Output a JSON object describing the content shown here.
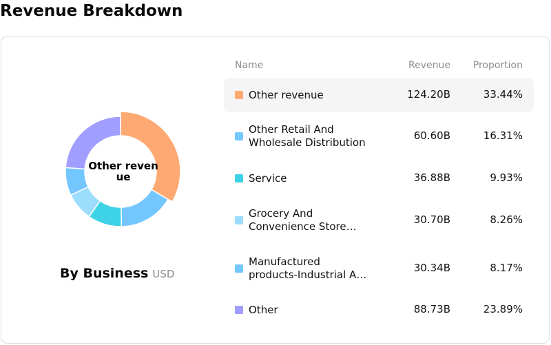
{
  "page_title": "Revenue Breakdown",
  "chart": {
    "center_label": "Other revenue",
    "section_title": "By Business",
    "unit": "USD"
  },
  "table": {
    "headers": {
      "name": "Name",
      "revenue": "Revenue",
      "proportion": "Proportion"
    },
    "rows": [
      {
        "name_lines": [
          "Other revenue"
        ],
        "revenue": "124.20B",
        "proportion": "33.44%",
        "color": "#fea872"
      },
      {
        "name_lines": [
          "Other Retail And",
          "Wholesale Distribution"
        ],
        "revenue": "60.60B",
        "proportion": "16.31%",
        "color": "#74c6fe"
      },
      {
        "name_lines": [
          "Service"
        ],
        "revenue": "36.88B",
        "proportion": "9.93%",
        "color": "#3ed2e6"
      },
      {
        "name_lines": [
          "Grocery And",
          "Convenience Store…"
        ],
        "revenue": "30.70B",
        "proportion": "8.26%",
        "color": "#9cdcfc"
      },
      {
        "name_lines": [
          "Manufactured",
          "products-Industrial A…"
        ],
        "revenue": "30.34B",
        "proportion": "8.17%",
        "color": "#74c6fe"
      },
      {
        "name_lines": [
          "Other"
        ],
        "revenue": "88.73B",
        "proportion": "23.89%",
        "color": "#a09efe"
      }
    ]
  },
  "chart_data": {
    "type": "pie",
    "title": "By Business",
    "unit": "USD",
    "categories": [
      "Other revenue",
      "Other Retail And Wholesale Distribution",
      "Service",
      "Grocery And Convenience Store…",
      "Manufactured products-Industrial A…",
      "Other"
    ],
    "values": [
      33.44,
      16.31,
      9.93,
      8.26,
      8.17,
      23.89
    ],
    "revenue": [
      "124.20B",
      "60.60B",
      "36.88B",
      "30.70B",
      "30.34B",
      "88.73B"
    ],
    "colors": [
      "#fea872",
      "#74c6fe",
      "#3ed2e6",
      "#9cdcfc",
      "#74c6fe",
      "#a09efe"
    ],
    "highlight": "Other revenue"
  }
}
